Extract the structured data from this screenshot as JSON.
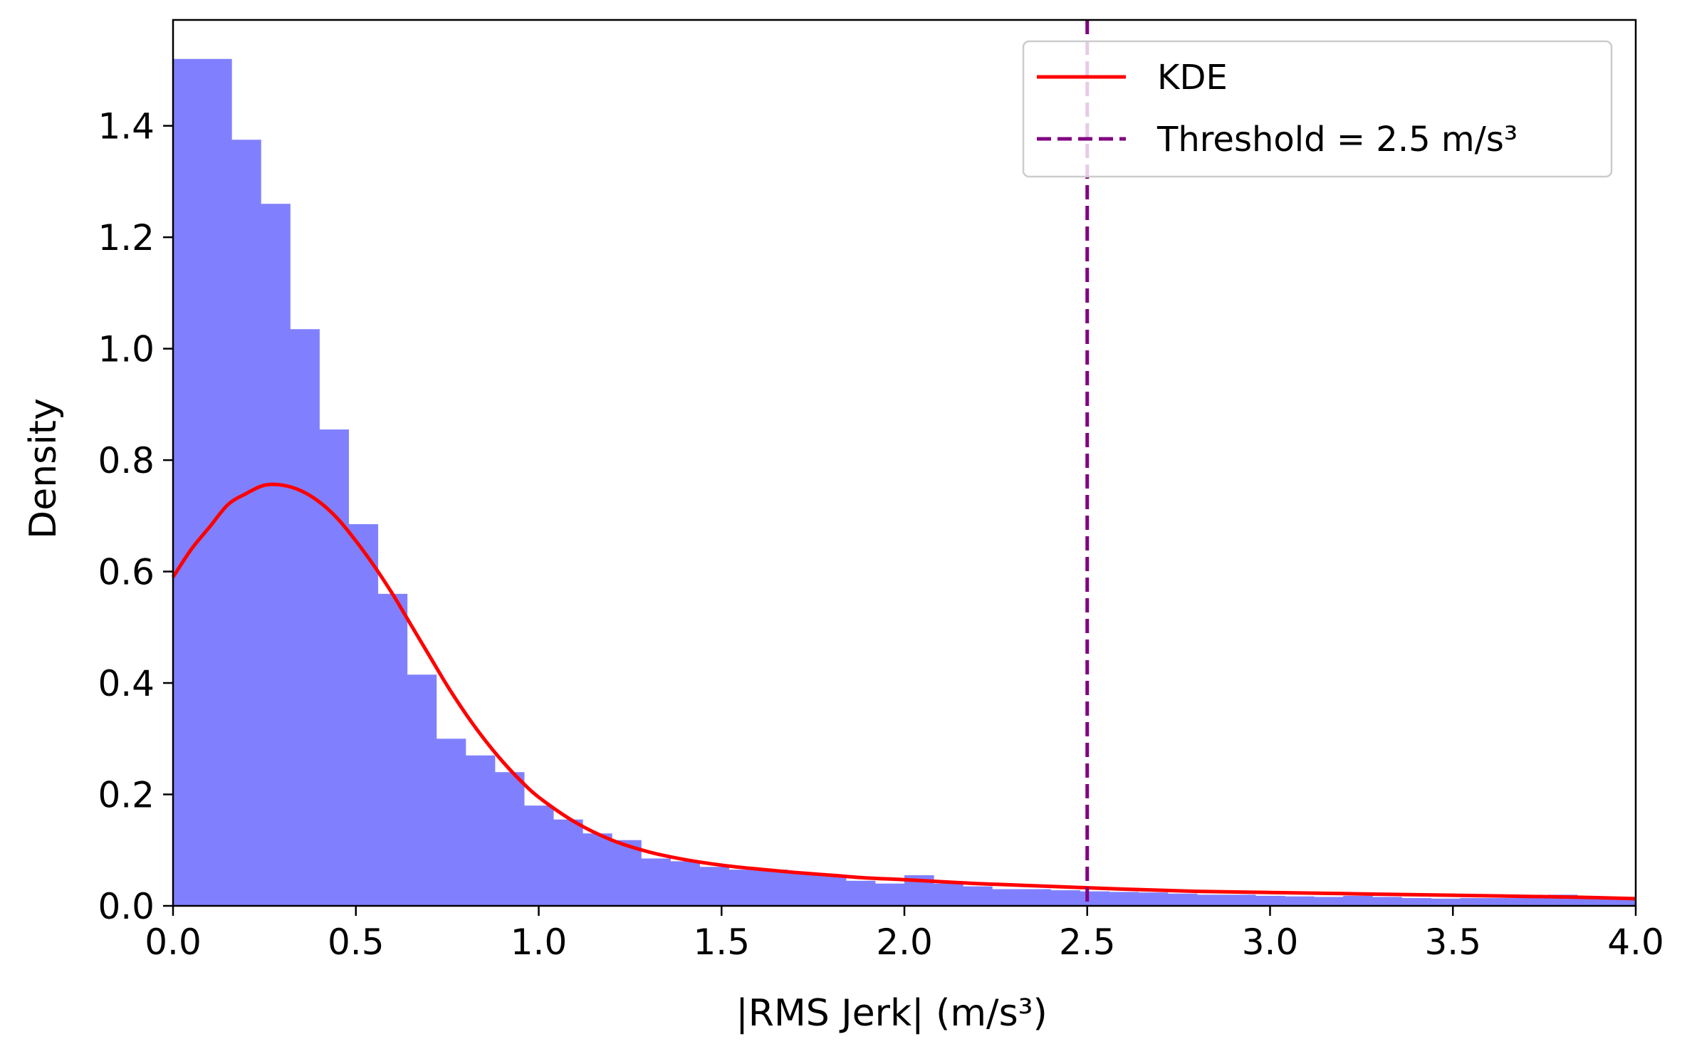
{
  "chart_data": {
    "type": "bar",
    "xlabel": "|RMS Jerk| (m/s³)",
    "ylabel": "Density",
    "xlim": [
      0,
      4.0
    ],
    "ylim": [
      0,
      1.59
    ],
    "grid": false,
    "legend_position": "top-right",
    "x_ticks": [
      "0.0",
      "0.5",
      "1.0",
      "1.5",
      "2.0",
      "2.5",
      "3.0",
      "3.5",
      "4.0"
    ],
    "y_ticks": [
      "0.0",
      "0.2",
      "0.4",
      "0.6",
      "0.8",
      "1.0",
      "1.2",
      "1.4"
    ],
    "histogram": {
      "bin_width": 0.08,
      "bin_start": 0.0,
      "color": "#8080ff",
      "densities": [
        1.52,
        1.52,
        1.375,
        1.26,
        1.035,
        0.855,
        0.685,
        0.56,
        0.415,
        0.3,
        0.27,
        0.24,
        0.18,
        0.155,
        0.13,
        0.118,
        0.085,
        0.08,
        0.07,
        0.065,
        0.065,
        0.058,
        0.055,
        0.045,
        0.04,
        0.055,
        0.04,
        0.035,
        0.03,
        0.03,
        0.028,
        0.026,
        0.025,
        0.024,
        0.022,
        0.02,
        0.02,
        0.018,
        0.017,
        0.016,
        0.018,
        0.016,
        0.014,
        0.013,
        0.014,
        0.014,
        0.015,
        0.02,
        0.015,
        0.012
      ]
    },
    "kde": {
      "name": "KDE",
      "color": "#ff0000",
      "x": [
        0.0,
        0.05,
        0.1,
        0.15,
        0.2,
        0.25,
        0.3,
        0.35,
        0.4,
        0.45,
        0.5,
        0.55,
        0.6,
        0.65,
        0.7,
        0.75,
        0.8,
        0.85,
        0.9,
        0.95,
        1.0,
        1.1,
        1.2,
        1.3,
        1.4,
        1.5,
        1.6,
        1.7,
        1.8,
        1.9,
        2.0,
        2.2,
        2.4,
        2.6,
        2.8,
        3.0,
        3.2,
        3.4,
        3.6,
        3.8,
        4.0
      ],
      "y": [
        0.59,
        0.64,
        0.68,
        0.72,
        0.74,
        0.755,
        0.755,
        0.745,
        0.725,
        0.695,
        0.655,
        0.61,
        0.56,
        0.505,
        0.45,
        0.395,
        0.345,
        0.3,
        0.26,
        0.225,
        0.195,
        0.15,
        0.118,
        0.097,
        0.083,
        0.073,
        0.066,
        0.06,
        0.055,
        0.05,
        0.047,
        0.04,
        0.035,
        0.03,
        0.026,
        0.024,
        0.022,
        0.02,
        0.018,
        0.016,
        0.013
      ]
    },
    "threshold": {
      "name": "Threshold = 2.5 m/s³",
      "value": 2.5,
      "color": "#800080",
      "style": "dashed"
    }
  }
}
